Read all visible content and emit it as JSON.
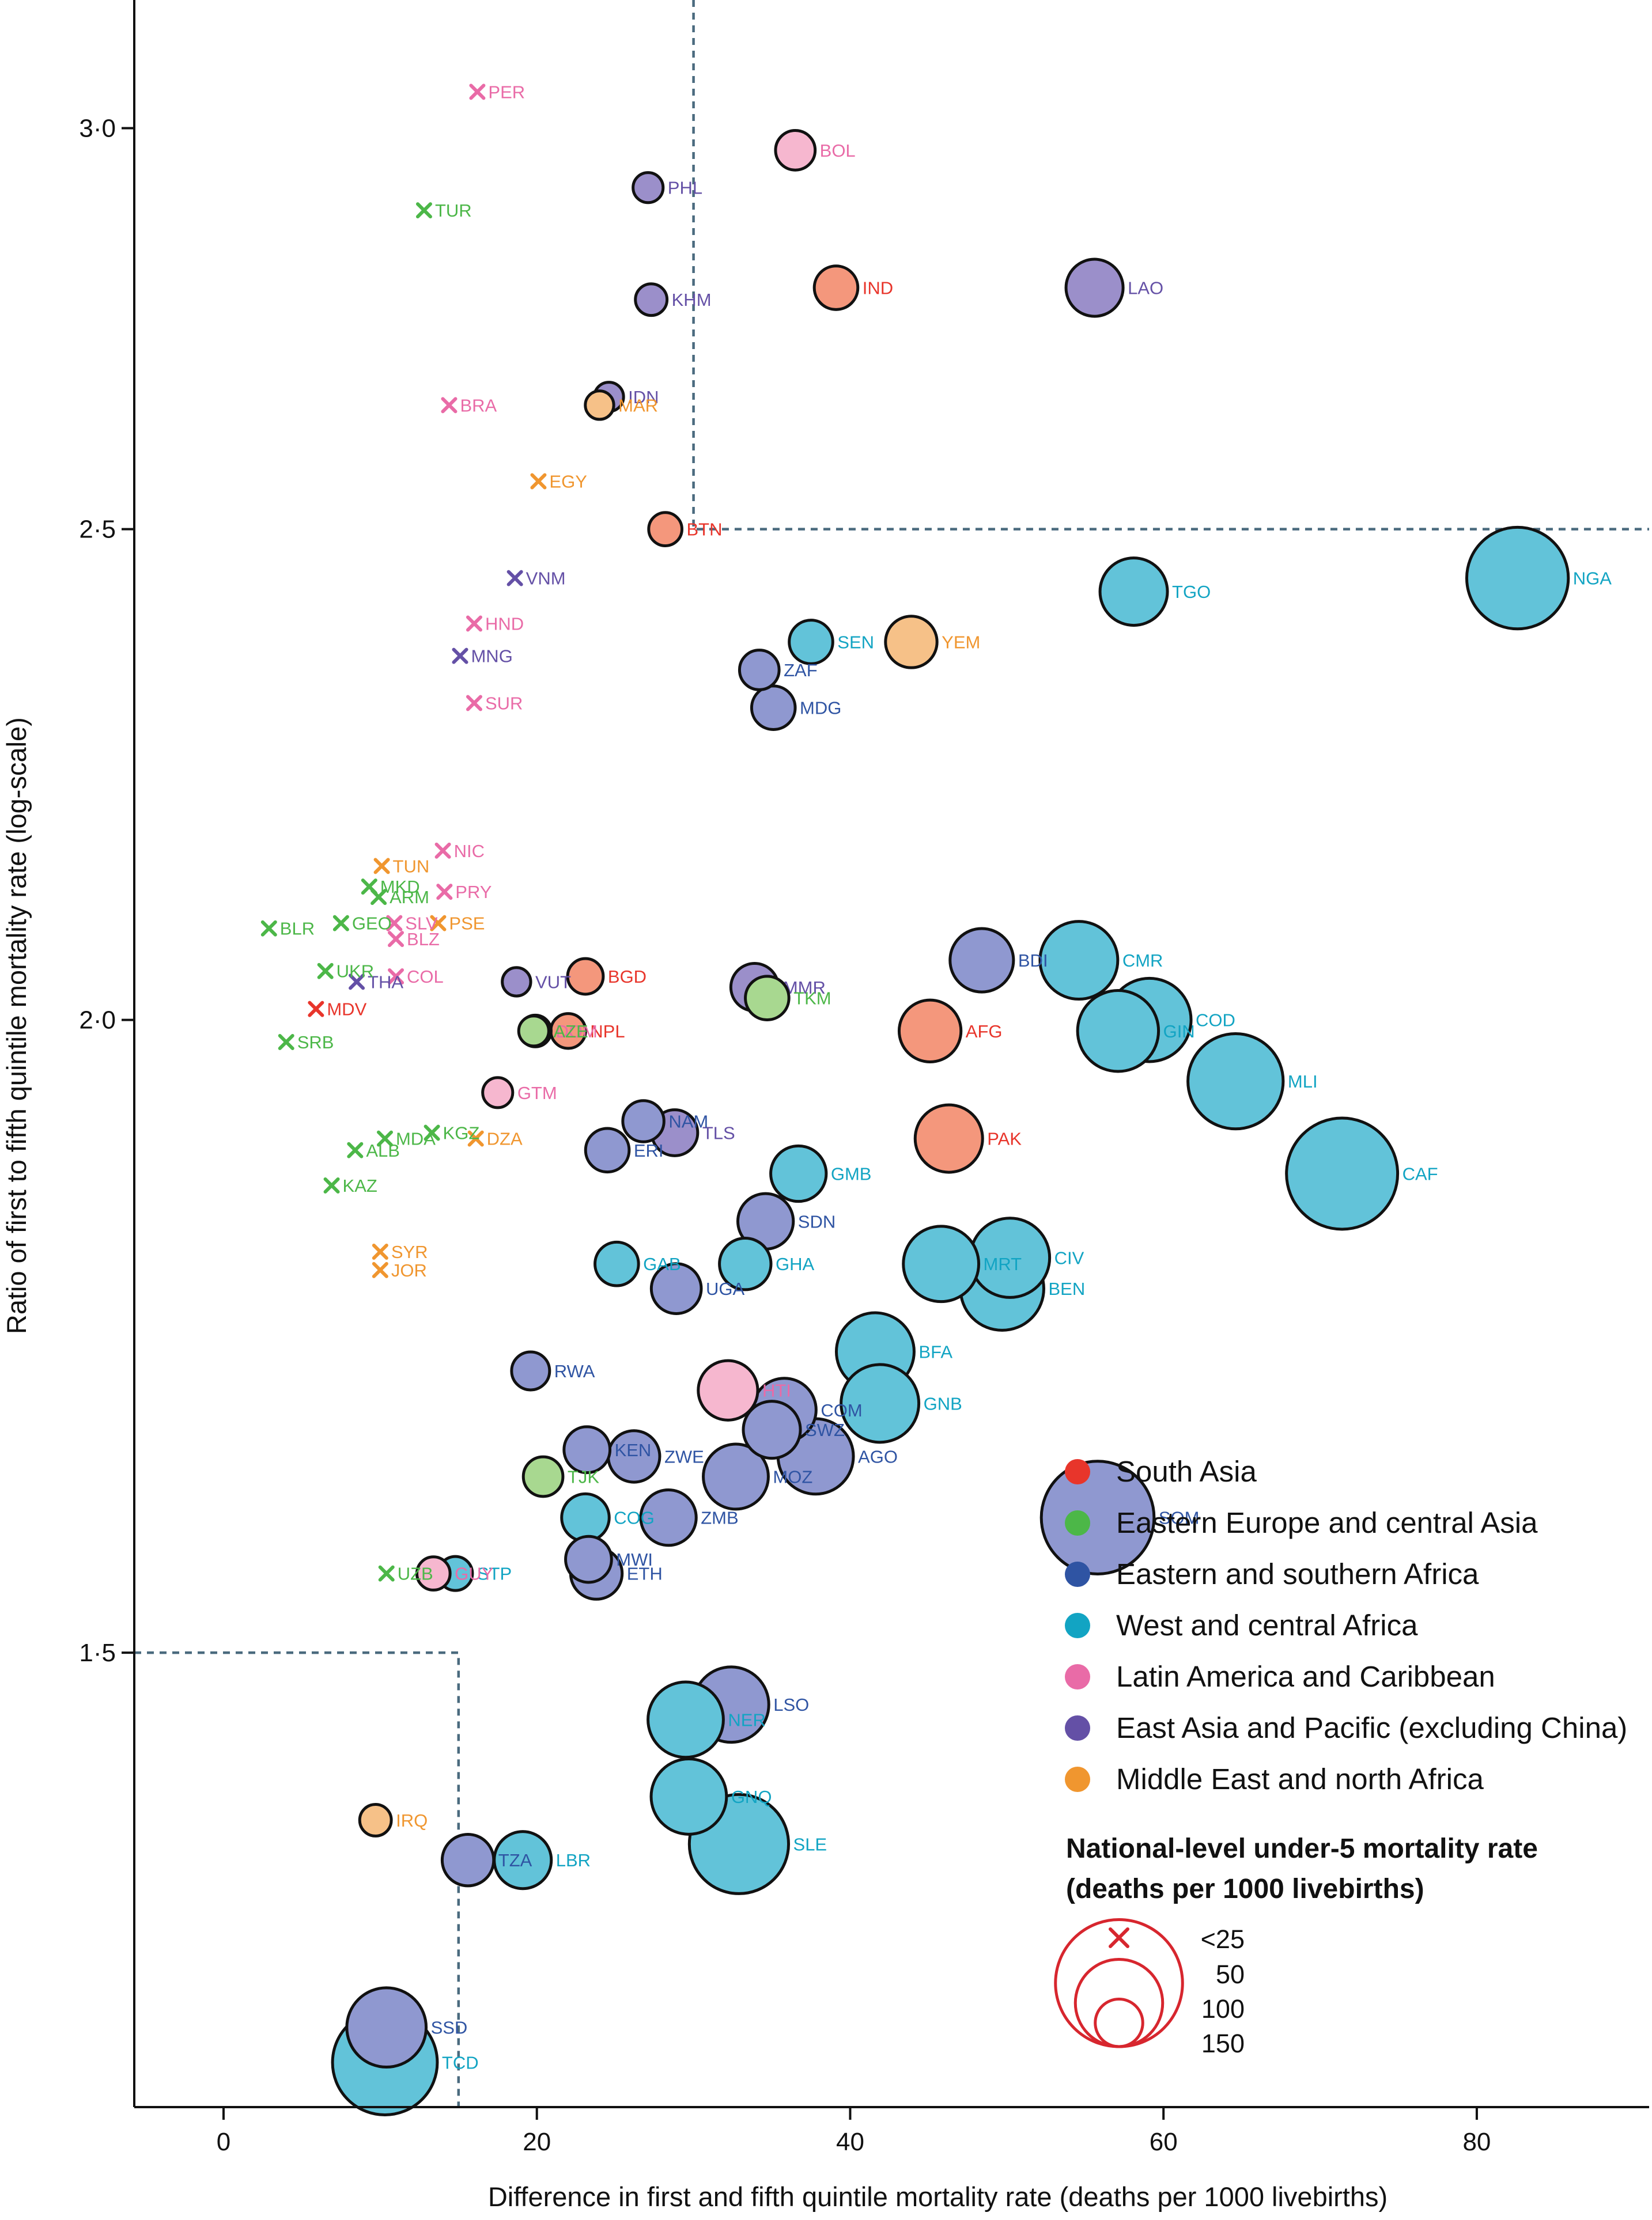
{
  "chart_data": {
    "type": "scatter",
    "xlabel": "Difference in first and fifth quintile mortality rate (deaths per 1000 livebirths)",
    "ylabel": "Ratio of first to fifth quintile mortality rate (log-scale)",
    "x_ticks": [
      0,
      20,
      40,
      60,
      80
    ],
    "x_tick_labels": [
      "0",
      "20",
      "40",
      "60",
      "80"
    ],
    "y_ticks": [
      1.5,
      2.0,
      2.5,
      3.0
    ],
    "y_tick_labels": [
      "1·5",
      "2·0",
      "2·5",
      "3·0"
    ],
    "xlim": [
      -5.7,
      91
    ],
    "ylim": [
      1.22,
      3.18
    ],
    "y_scale": "log",
    "grid": false,
    "reference_lines": [
      {
        "points": [
          [
            30,
            3.18
          ],
          [
            30,
            2.5
          ],
          [
            91,
            2.5
          ]
        ]
      },
      {
        "points": [
          [
            -5.7,
            1.5
          ],
          [
            15,
            1.5
          ],
          [
            15,
            1.22
          ]
        ]
      }
    ],
    "regions": [
      {
        "key": "SA",
        "name": "South Asia",
        "color": "#e8352b",
        "fill": "#f4977c"
      },
      {
        "key": "EECA",
        "name": "Eastern Europe and central Asia",
        "color": "#4cb748",
        "fill": "#a8d890"
      },
      {
        "key": "ESA",
        "name": "Eastern and southern Africa",
        "color": "#2f54a3",
        "fill": "#8f98d0"
      },
      {
        "key": "WCA",
        "name": "West and central Africa",
        "color": "#12a4c3",
        "fill": "#62c3d9"
      },
      {
        "key": "LAC",
        "name": "Latin America and Caribbean",
        "color": "#e96ba7",
        "fill": "#f6b7cf"
      },
      {
        "key": "EAP",
        "name": "East Asia and Pacific (excluding China)",
        "color": "#6450a6",
        "fill": "#9b8fca"
      },
      {
        "key": "MENA",
        "name": "Middle East and north Africa",
        "color": "#f0962f",
        "fill": "#f6c188"
      }
    ],
    "size_legend": {
      "title_line1": "National-level under-5 mortality rate",
      "title_line2": "(deaths per 1000 livebirths)",
      "labels": [
        "<25",
        "50",
        "100",
        "150"
      ],
      "values": [
        25,
        50,
        100,
        150
      ],
      "color": "#d7262e"
    },
    "points": [
      {
        "code": "PER",
        "x": 16.2,
        "y": 3.05,
        "region": "LAC",
        "u5mr": 18
      },
      {
        "code": "BOL",
        "x": 36.5,
        "y": 2.97,
        "region": "LAC",
        "u5mr": 40
      },
      {
        "code": "PHL",
        "x": 27.1,
        "y": 2.92,
        "region": "EAP",
        "u5mr": 28
      },
      {
        "code": "TUR",
        "x": 12.8,
        "y": 2.89,
        "region": "EECA",
        "u5mr": 14
      },
      {
        "code": "IND",
        "x": 39.1,
        "y": 2.79,
        "region": "SA",
        "u5mr": 45
      },
      {
        "code": "LAO",
        "x": 55.6,
        "y": 2.79,
        "region": "EAP",
        "u5mr": 62
      },
      {
        "code": "KHM",
        "x": 27.3,
        "y": 2.775,
        "region": "EAP",
        "u5mr": 30
      },
      {
        "code": "IDN",
        "x": 24.6,
        "y": 2.655,
        "region": "EAP",
        "u5mr": 27
      },
      {
        "code": "BRA",
        "x": 14.4,
        "y": 2.645,
        "region": "LAC",
        "u5mr": 16
      },
      {
        "code": "MAR",
        "x": 24.0,
        "y": 2.645,
        "region": "MENA",
        "u5mr": 26
      },
      {
        "code": "EGY",
        "x": 20.1,
        "y": 2.555,
        "region": "MENA",
        "u5mr": 22
      },
      {
        "code": "BTN",
        "x": 28.2,
        "y": 2.5,
        "region": "SA",
        "u5mr": 32
      },
      {
        "code": "VNM",
        "x": 18.6,
        "y": 2.445,
        "region": "EAP",
        "u5mr": 21
      },
      {
        "code": "NGA",
        "x": 82.6,
        "y": 2.445,
        "region": "WCA",
        "u5mr": 118
      },
      {
        "code": "TGO",
        "x": 58.1,
        "y": 2.43,
        "region": "WCA",
        "u5mr": 75
      },
      {
        "code": "HND",
        "x": 16.0,
        "y": 2.395,
        "region": "LAC",
        "u5mr": 20
      },
      {
        "code": "SEN",
        "x": 37.5,
        "y": 2.375,
        "region": "WCA",
        "u5mr": 45
      },
      {
        "code": "YEM",
        "x": 43.9,
        "y": 2.375,
        "region": "MENA",
        "u5mr": 55
      },
      {
        "code": "MNG",
        "x": 15.1,
        "y": 2.36,
        "region": "EAP",
        "u5mr": 20
      },
      {
        "code": "ZAF",
        "x": 34.2,
        "y": 2.345,
        "region": "ESA",
        "u5mr": 40
      },
      {
        "code": "SUR",
        "x": 16.0,
        "y": 2.31,
        "region": "LAC",
        "u5mr": 20
      },
      {
        "code": "MDG",
        "x": 35.1,
        "y": 2.305,
        "region": "ESA",
        "u5mr": 45
      },
      {
        "code": "TUN",
        "x": 10.1,
        "y": 2.145,
        "region": "MENA",
        "u5mr": 14
      },
      {
        "code": "NIC",
        "x": 14.0,
        "y": 2.16,
        "region": "LAC",
        "u5mr": 18
      },
      {
        "code": "MKD",
        "x": 9.3,
        "y": 2.125,
        "region": "EECA",
        "u5mr": 12
      },
      {
        "code": "ARM",
        "x": 9.9,
        "y": 2.115,
        "region": "EECA",
        "u5mr": 14
      },
      {
        "code": "PRY",
        "x": 14.1,
        "y": 2.12,
        "region": "LAC",
        "u5mr": 20
      },
      {
        "code": "BLR",
        "x": 2.9,
        "y": 2.085,
        "region": "EECA",
        "u5mr": 5
      },
      {
        "code": "GEO",
        "x": 7.5,
        "y": 2.09,
        "region": "EECA",
        "u5mr": 12
      },
      {
        "code": "SLV",
        "x": 10.9,
        "y": 2.09,
        "region": "LAC",
        "u5mr": 15
      },
      {
        "code": "PSE",
        "x": 13.7,
        "y": 2.09,
        "region": "MENA",
        "u5mr": 20
      },
      {
        "code": "BLZ",
        "x": 11.0,
        "y": 2.075,
        "region": "LAC",
        "u5mr": 15
      },
      {
        "code": "CMR",
        "x": 54.6,
        "y": 2.055,
        "region": "WCA",
        "u5mr": 88
      },
      {
        "code": "BDI",
        "x": 48.4,
        "y": 2.055,
        "region": "ESA",
        "u5mr": 70
      },
      {
        "code": "UKR",
        "x": 6.5,
        "y": 2.045,
        "region": "EECA",
        "u5mr": 9
      },
      {
        "code": "COL",
        "x": 11.0,
        "y": 2.04,
        "region": "LAC",
        "u5mr": 16
      },
      {
        "code": "VUT",
        "x": 18.7,
        "y": 2.035,
        "region": "EAP",
        "u5mr": 26
      },
      {
        "code": "BGD",
        "x": 23.1,
        "y": 2.04,
        "region": "SA",
        "u5mr": 35
      },
      {
        "code": "MMR",
        "x": 33.9,
        "y": 2.03,
        "region": "EAP",
        "u5mr": 50
      },
      {
        "code": "TKM",
        "x": 34.7,
        "y": 2.02,
        "region": "EECA",
        "u5mr": 45
      },
      {
        "code": "THA",
        "x": 8.5,
        "y": 2.035,
        "region": "EAP",
        "u5mr": 10
      },
      {
        "code": "MDV",
        "x": 5.9,
        "y": 2.01,
        "region": "SA",
        "u5mr": 8
      },
      {
        "code": "COD",
        "x": 59.1,
        "y": 2.0,
        "region": "WCA",
        "u5mr": 95
      },
      {
        "code": "GIN",
        "x": 57.1,
        "y": 1.99,
        "region": "WCA",
        "u5mr": 92
      },
      {
        "code": "AFG",
        "x": 45.1,
        "y": 1.99,
        "region": "SA",
        "u5mr": 68
      },
      {
        "code": "DOM",
        "x": 19.9,
        "y": 1.99,
        "region": "LAC",
        "u5mr": 30
      },
      {
        "code": "AZE",
        "x": 19.8,
        "y": 1.99,
        "region": "EECA",
        "u5mr": 28
      },
      {
        "code": "NPL",
        "x": 22.0,
        "y": 1.99,
        "region": "SA",
        "u5mr": 34
      },
      {
        "code": "SRB",
        "x": 4.0,
        "y": 1.98,
        "region": "EECA",
        "u5mr": 6
      },
      {
        "code": "MLI",
        "x": 64.6,
        "y": 1.945,
        "region": "WCA",
        "u5mr": 110
      },
      {
        "code": "GTM",
        "x": 17.5,
        "y": 1.935,
        "region": "LAC",
        "u5mr": 28
      },
      {
        "code": "NAM",
        "x": 26.8,
        "y": 1.91,
        "region": "ESA",
        "u5mr": 42
      },
      {
        "code": "MDA",
        "x": 10.3,
        "y": 1.895,
        "region": "EECA",
        "u5mr": 15
      },
      {
        "code": "KGZ",
        "x": 13.3,
        "y": 1.9,
        "region": "EECA",
        "u5mr": 20
      },
      {
        "code": "DZA",
        "x": 16.1,
        "y": 1.895,
        "region": "MENA",
        "u5mr": 24
      },
      {
        "code": "PAK",
        "x": 46.3,
        "y": 1.895,
        "region": "SA",
        "u5mr": 75
      },
      {
        "code": "TLS",
        "x": 28.8,
        "y": 1.9,
        "region": "EAP",
        "u5mr": 48
      },
      {
        "code": "ALB",
        "x": 8.4,
        "y": 1.885,
        "region": "EECA",
        "u5mr": 13
      },
      {
        "code": "ERI",
        "x": 24.5,
        "y": 1.885,
        "region": "ESA",
        "u5mr": 45
      },
      {
        "code": "CAF",
        "x": 71.4,
        "y": 1.865,
        "region": "WCA",
        "u5mr": 130
      },
      {
        "code": "GMB",
        "x": 36.7,
        "y": 1.865,
        "region": "WCA",
        "u5mr": 60
      },
      {
        "code": "KAZ",
        "x": 6.9,
        "y": 1.855,
        "region": "EECA",
        "u5mr": 14
      },
      {
        "code": "SDN",
        "x": 34.6,
        "y": 1.825,
        "region": "ESA",
        "u5mr": 60
      },
      {
        "code": "SYR",
        "x": 10.0,
        "y": 1.8,
        "region": "MENA",
        "u5mr": 15
      },
      {
        "code": "JOR",
        "x": 10.0,
        "y": 1.785,
        "region": "MENA",
        "u5mr": 15
      },
      {
        "code": "MRT",
        "x": 45.8,
        "y": 1.79,
        "region": "WCA",
        "u5mr": 85
      },
      {
        "code": "CIV",
        "x": 50.2,
        "y": 1.795,
        "region": "WCA",
        "u5mr": 90
      },
      {
        "code": "GAB",
        "x": 25.1,
        "y": 1.79,
        "region": "WCA",
        "u5mr": 45
      },
      {
        "code": "GHA",
        "x": 33.3,
        "y": 1.79,
        "region": "WCA",
        "u5mr": 55
      },
      {
        "code": "BEN",
        "x": 49.7,
        "y": 1.77,
        "region": "WCA",
        "u5mr": 95
      },
      {
        "code": "UGA",
        "x": 28.9,
        "y": 1.77,
        "region": "ESA",
        "u5mr": 53
      },
      {
        "code": "BFA",
        "x": 41.6,
        "y": 1.72,
        "region": "WCA",
        "u5mr": 88
      },
      {
        "code": "RWA",
        "x": 19.6,
        "y": 1.705,
        "region": "ESA",
        "u5mr": 38
      },
      {
        "code": "HTI",
        "x": 32.2,
        "y": 1.69,
        "region": "LAC",
        "u5mr": 65
      },
      {
        "code": "COM",
        "x": 35.8,
        "y": 1.675,
        "region": "ESA",
        "u5mr": 70
      },
      {
        "code": "GNB",
        "x": 41.9,
        "y": 1.68,
        "region": "WCA",
        "u5mr": 88
      },
      {
        "code": "SWZ",
        "x": 35.0,
        "y": 1.66,
        "region": "ESA",
        "u5mr": 62
      },
      {
        "code": "AGO",
        "x": 37.8,
        "y": 1.64,
        "region": "ESA",
        "u5mr": 85
      },
      {
        "code": "ZWE",
        "x": 26.2,
        "y": 1.64,
        "region": "ESA",
        "u5mr": 55
      },
      {
        "code": "KEN",
        "x": 23.2,
        "y": 1.645,
        "region": "ESA",
        "u5mr": 48
      },
      {
        "code": "MOZ",
        "x": 32.7,
        "y": 1.625,
        "region": "ESA",
        "u5mr": 72
      },
      {
        "code": "TJK",
        "x": 20.4,
        "y": 1.625,
        "region": "EECA",
        "u5mr": 40
      },
      {
        "code": "SOM",
        "x": 55.8,
        "y": 1.595,
        "region": "ESA",
        "u5mr": 132
      },
      {
        "code": "ZMB",
        "x": 28.4,
        "y": 1.595,
        "region": "ESA",
        "u5mr": 60
      },
      {
        "code": "COG",
        "x": 23.1,
        "y": 1.595,
        "region": "WCA",
        "u5mr": 50
      },
      {
        "code": "MWI",
        "x": 23.3,
        "y": 1.565,
        "region": "ESA",
        "u5mr": 48
      },
      {
        "code": "ETH",
        "x": 23.8,
        "y": 1.555,
        "region": "ESA",
        "u5mr": 55
      },
      {
        "code": "GUY",
        "x": 13.4,
        "y": 1.555,
        "region": "LAC",
        "u5mr": 32
      },
      {
        "code": "STP",
        "x": 14.8,
        "y": 1.555,
        "region": "WCA",
        "u5mr": 33
      },
      {
        "code": "UZB",
        "x": 10.4,
        "y": 1.555,
        "region": "EECA",
        "u5mr": 18
      },
      {
        "code": "LSO",
        "x": 32.4,
        "y": 1.465,
        "region": "ESA",
        "u5mr": 85
      },
      {
        "code": "NER",
        "x": 29.5,
        "y": 1.455,
        "region": "WCA",
        "u5mr": 85
      },
      {
        "code": "GNQ",
        "x": 29.7,
        "y": 1.405,
        "region": "WCA",
        "u5mr": 85
      },
      {
        "code": "IRQ",
        "x": 9.7,
        "y": 1.39,
        "region": "MENA",
        "u5mr": 30
      },
      {
        "code": "SLE",
        "x": 32.9,
        "y": 1.375,
        "region": "WCA",
        "u5mr": 115
      },
      {
        "code": "TZA",
        "x": 15.6,
        "y": 1.365,
        "region": "ESA",
        "u5mr": 55
      },
      {
        "code": "LBR",
        "x": 19.1,
        "y": 1.365,
        "region": "WCA",
        "u5mr": 62
      },
      {
        "code": "SSD",
        "x": 10.4,
        "y": 1.265,
        "region": "ESA",
        "u5mr": 90
      },
      {
        "code": "TCD",
        "x": 10.3,
        "y": 1.245,
        "region": "WCA",
        "u5mr": 122
      }
    ]
  }
}
